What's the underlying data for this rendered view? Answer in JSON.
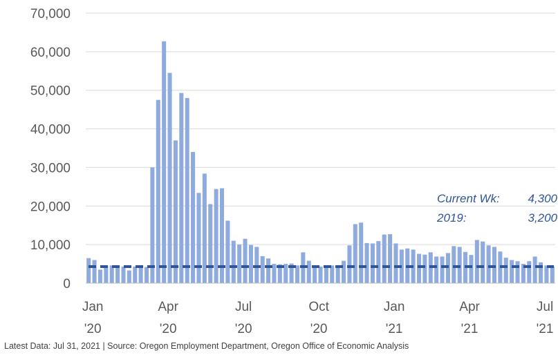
{
  "chart_data": {
    "type": "bar",
    "title": "",
    "xlabel": "",
    "ylabel": "",
    "ylim": [
      0,
      70000
    ],
    "grid": true,
    "y_ticks": [
      "0",
      "10,000",
      "20,000",
      "30,000",
      "40,000",
      "50,000",
      "60,000",
      "70,000"
    ],
    "y_tick_values": [
      0,
      10000,
      20000,
      30000,
      40000,
      50000,
      60000,
      70000
    ],
    "x_tick_labels": [
      {
        "month": "Jan",
        "year": "'20",
        "week_index": 0
      },
      {
        "month": "Apr",
        "year": "'20",
        "week_index": 13
      },
      {
        "month": "Jul",
        "year": "'20",
        "week_index": 26
      },
      {
        "month": "Oct",
        "year": "'20",
        "week_index": 39
      },
      {
        "month": "Jan",
        "year": "'21",
        "week_index": 52
      },
      {
        "month": "Apr",
        "year": "'21",
        "week_index": 65
      },
      {
        "month": "Jul",
        "year": "'21",
        "week_index": 78
      }
    ],
    "series": [
      {
        "type": "bar",
        "color": "#8FAADC",
        "values": [
          6500,
          6000,
          3500,
          4500,
          4600,
          4500,
          4300,
          3300,
          4300,
          4300,
          4200,
          30000,
          47500,
          62700,
          54500,
          37000,
          49300,
          48000,
          34000,
          23400,
          28400,
          20500,
          24400,
          24600,
          16200,
          11000,
          10000,
          11500,
          9900,
          9400,
          7000,
          6400,
          5000,
          4900,
          5000,
          5100,
          4600,
          8000,
          5800,
          4500,
          4300,
          4200,
          4600,
          4200,
          5800,
          9800,
          15300,
          15700,
          10400,
          10300,
          10900,
          12600,
          12700,
          10300,
          8700,
          9000,
          8700,
          7600,
          7400,
          8000,
          6900,
          6900,
          7800,
          9600,
          9400,
          8100,
          7300,
          11200,
          10800,
          9800,
          9400,
          8200,
          6600,
          6000,
          5700,
          5000,
          5700,
          6900,
          5400,
          4600,
          4300
        ]
      },
      {
        "type": "line",
        "style": "dashed",
        "color": "#2F5597",
        "value": 4300
      }
    ],
    "annotations": [
      {
        "label": "Current Wk:",
        "value": "4,300"
      },
      {
        "label": "2019:",
        "value": "3,200"
      }
    ]
  },
  "source_text": "Latest Data: Jul 31, 2021  |  Source: Oregon Employment Department, Oregon Office of Economic Analysis"
}
